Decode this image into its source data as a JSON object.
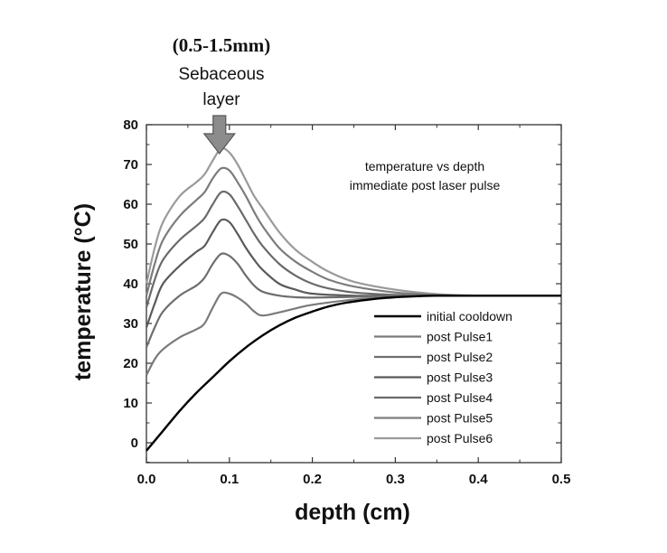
{
  "chart_data": {
    "type": "line",
    "xlabel": "depth (cm)",
    "ylabel": "temperature (°C)",
    "xlim": [
      0,
      0.5
    ],
    "ylim": [
      -5,
      80
    ],
    "xticks": [
      "0.0",
      "0.1",
      "0.2",
      "0.3",
      "0.4",
      "0.5"
    ],
    "yticks": [
      "0",
      "10",
      "20",
      "30",
      "40",
      "50",
      "60",
      "70",
      "80"
    ],
    "grid": false,
    "legend_position": "bottom-right",
    "annotation_lines": [
      "temperature vs depth",
      "immediate post laser pulse"
    ],
    "arrow_labels": {
      "range": "(0.5-1.5mm)",
      "line1": "Sebaceous",
      "line2": "layer"
    },
    "arrow_x": 0.088,
    "series": [
      {
        "name": "initial cooldown",
        "color": "#000000",
        "x": [
          0.0,
          0.02,
          0.04,
          0.06,
          0.08,
          0.1,
          0.12,
          0.14,
          0.16,
          0.18,
          0.2,
          0.22,
          0.24,
          0.26,
          0.28,
          0.3,
          0.32,
          0.35,
          0.4,
          0.5
        ],
        "y": [
          -2,
          3,
          8,
          12.5,
          16.5,
          20.5,
          24,
          27,
          29.5,
          31.5,
          33,
          34.3,
          35.2,
          35.8,
          36.3,
          36.6,
          36.8,
          37,
          37,
          37
        ]
      },
      {
        "name": "post Pulse1",
        "color": "#7a7a7a",
        "x": [
          0.0,
          0.01,
          0.02,
          0.04,
          0.06,
          0.07,
          0.08,
          0.09,
          0.1,
          0.11,
          0.12,
          0.13,
          0.14,
          0.16,
          0.18,
          0.2,
          0.25,
          0.3,
          0.35,
          0.4,
          0.5
        ],
        "y": [
          17,
          21,
          23.5,
          26.5,
          28.5,
          30,
          34,
          37.5,
          37.5,
          36.5,
          35,
          33,
          32,
          32.8,
          33.8,
          34.7,
          36,
          36.7,
          37,
          37,
          37
        ]
      },
      {
        "name": "post Pulse2",
        "color": "#6e6e6e",
        "x": [
          0.0,
          0.01,
          0.02,
          0.04,
          0.06,
          0.07,
          0.08,
          0.09,
          0.1,
          0.11,
          0.12,
          0.13,
          0.14,
          0.16,
          0.18,
          0.2,
          0.25,
          0.3,
          0.35,
          0.4,
          0.5
        ],
        "y": [
          24,
          29,
          33,
          37,
          39.5,
          41.5,
          45,
          47.5,
          47,
          45,
          42,
          39.5,
          38,
          37,
          36.6,
          36.5,
          36.7,
          37,
          37,
          37,
          37
        ]
      },
      {
        "name": "post Pulse3",
        "color": "#5a5a5a",
        "x": [
          0.0,
          0.01,
          0.02,
          0.04,
          0.06,
          0.07,
          0.08,
          0.09,
          0.1,
          0.11,
          0.12,
          0.13,
          0.14,
          0.16,
          0.18,
          0.2,
          0.25,
          0.3,
          0.35,
          0.4,
          0.5
        ],
        "y": [
          29,
          35,
          40,
          44.5,
          48,
          49.5,
          53,
          56,
          55.5,
          52.5,
          49,
          46,
          43.5,
          40,
          38.5,
          37.5,
          37,
          37,
          37,
          37,
          37
        ]
      },
      {
        "name": "post Pulse4",
        "color": "#6a6a6a",
        "x": [
          0.0,
          0.01,
          0.02,
          0.04,
          0.06,
          0.07,
          0.08,
          0.09,
          0.1,
          0.11,
          0.12,
          0.13,
          0.14,
          0.16,
          0.18,
          0.2,
          0.22,
          0.25,
          0.3,
          0.35,
          0.4,
          0.5
        ],
        "y": [
          34,
          41,
          46,
          51,
          54.5,
          56.5,
          60,
          63,
          62.5,
          59.5,
          56,
          52.5,
          49.5,
          45,
          42,
          40,
          38.8,
          37.8,
          37.2,
          37,
          37,
          37
        ]
      },
      {
        "name": "post Pulse5",
        "color": "#7c7c7c",
        "x": [
          0.0,
          0.01,
          0.02,
          0.04,
          0.06,
          0.07,
          0.08,
          0.09,
          0.1,
          0.11,
          0.12,
          0.13,
          0.14,
          0.16,
          0.18,
          0.2,
          0.22,
          0.25,
          0.3,
          0.35,
          0.4,
          0.5
        ],
        "y": [
          37,
          45,
          51,
          57,
          61,
          63,
          66.5,
          69,
          68.5,
          65.5,
          62,
          58,
          54.5,
          49,
          45.5,
          43,
          41,
          39.3,
          37.8,
          37.2,
          37,
          37
        ]
      },
      {
        "name": "post Pulse6",
        "color": "#9a9a9a",
        "x": [
          0.0,
          0.01,
          0.02,
          0.04,
          0.06,
          0.07,
          0.08,
          0.09,
          0.1,
          0.11,
          0.12,
          0.13,
          0.14,
          0.16,
          0.18,
          0.2,
          0.22,
          0.25,
          0.3,
          0.35,
          0.4,
          0.5
        ],
        "y": [
          40,
          49,
          55.5,
          62,
          65.5,
          67.5,
          71,
          74,
          73,
          70,
          66,
          62,
          59,
          53,
          48.5,
          45.5,
          43,
          40.5,
          38.5,
          37.4,
          37,
          37
        ]
      }
    ]
  }
}
